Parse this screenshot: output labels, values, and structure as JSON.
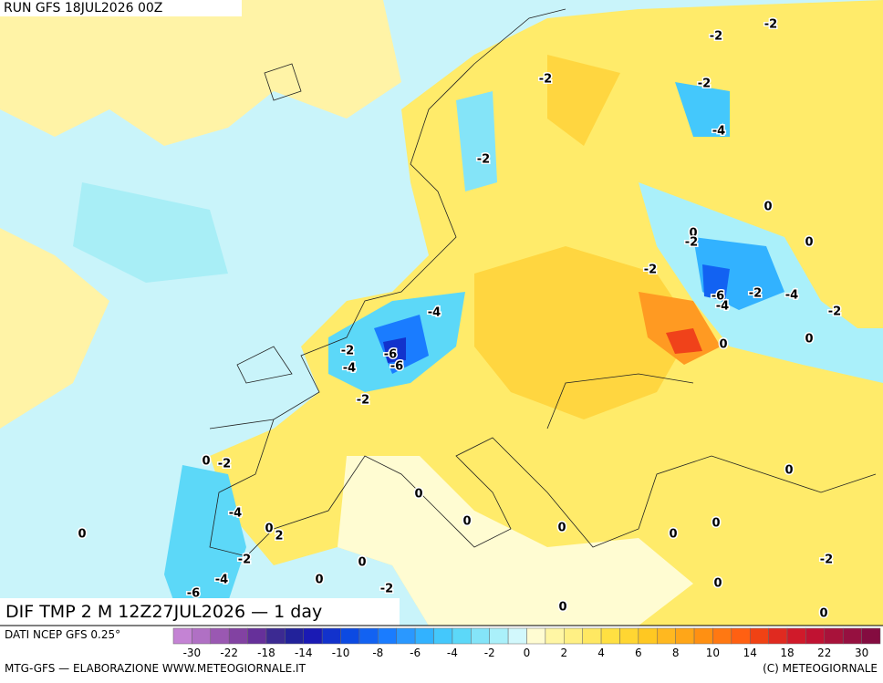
{
  "header": {
    "title": "RUN GFS 18JUL2026 00Z"
  },
  "map": {
    "caption": "DIF TMP 2 M 12Z27JUL2026 — 1 day",
    "contour_labels": [
      "-2",
      "-2",
      "-2",
      "-2",
      "-4",
      "-2",
      "0",
      "0",
      "-2",
      "0",
      "-2",
      "-6",
      "-2",
      "-4",
      "-4",
      "-2",
      "-4",
      "-2",
      "-6",
      "-4",
      "-6",
      "0",
      "0",
      "-2",
      "0",
      "-2",
      "0",
      "0",
      "-4",
      "0",
      "0",
      "2",
      "0",
      "0",
      "0",
      "0",
      "-2",
      "0",
      "-2",
      "-4",
      "0",
      "-2",
      "0",
      "-6",
      "0",
      "0"
    ]
  },
  "legend": {
    "source": "DATI NCEP GFS 0.25°",
    "colors": [
      "#c483d4",
      "#b070c4",
      "#9a58b2",
      "#8242a2",
      "#66309a",
      "#3c2a92",
      "#22229a",
      "#1a1ab4",
      "#1232cc",
      "#0c4ae2",
      "#1262f2",
      "#1a7cff",
      "#2a98ff",
      "#32b2ff",
      "#44c8fc",
      "#5cd8f8",
      "#84e4f8",
      "#aaf0fa",
      "#d2f8fc",
      "#fffcd2",
      "#fff6a4",
      "#fff084",
      "#ffe862",
      "#ffe042",
      "#ffd632",
      "#ffc822",
      "#ffb820",
      "#ffa618",
      "#ff9012",
      "#ff7812",
      "#ff6012",
      "#f04214",
      "#e02a20",
      "#d01a2a",
      "#c01232",
      "#a8123a",
      "#961040",
      "#840c40"
    ],
    "ticks": [
      -30,
      -22,
      -18,
      -14,
      -10,
      -8,
      -6,
      -4,
      -2,
      0,
      2,
      4,
      6,
      8,
      10,
      14,
      18,
      22,
      30
    ]
  },
  "footer": {
    "left": "MTG-GFS — ELABORAZIONE WWW.METEOGIORNALE.IT",
    "right": "(C) METEOGIORNALE"
  }
}
